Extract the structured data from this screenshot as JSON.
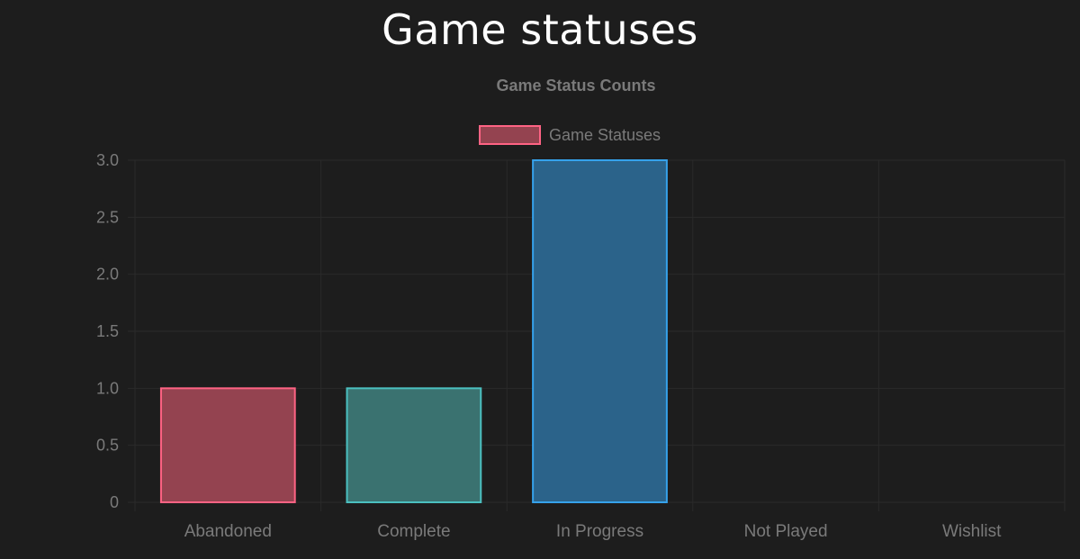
{
  "page": {
    "title": "Game statuses"
  },
  "chart_data": {
    "type": "bar",
    "title": "Game Status Counts",
    "xlabel": "",
    "ylabel": "",
    "categories": [
      "Abandoned",
      "Complete",
      "In Progress",
      "Not Played",
      "Wishlist"
    ],
    "series": [
      {
        "name": "Game Statuses",
        "values": [
          1,
          1,
          3,
          0,
          0
        ]
      }
    ],
    "ylim": [
      0,
      3
    ],
    "yticks": [
      0,
      0.5,
      1,
      1.5,
      2,
      2.5,
      3
    ],
    "ytick_labels": [
      "0",
      "0.5",
      "1.0",
      "1.5",
      "2.0",
      "2.5",
      "3.0"
    ],
    "grid": true,
    "legend_position": "top",
    "colors": {
      "fills": [
        "#944350",
        "#3a7270",
        "#2b638a",
        "#9b7a3e",
        "#5e4e8f"
      ],
      "borders": [
        "#ff6384",
        "#4bc0c0",
        "#36a2eb",
        "#ffce56",
        "#9966ff"
      ],
      "legend_fill": "#944350",
      "legend_border": "#ff6384",
      "text": "#7a7a7a",
      "grid": "#2a2a2a"
    }
  }
}
